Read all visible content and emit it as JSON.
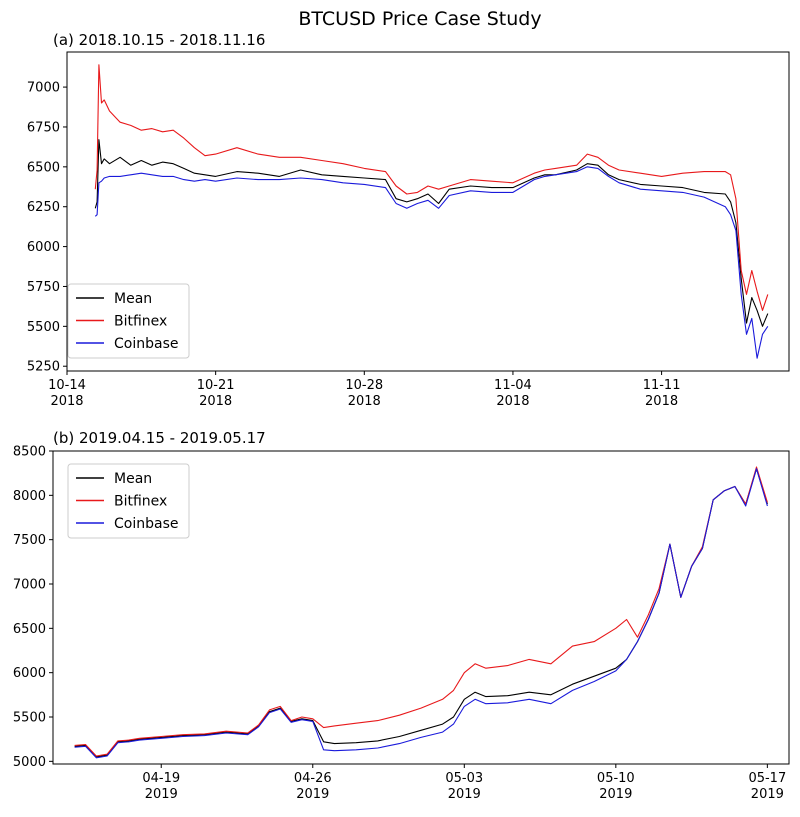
{
  "figure_title": "BTCUSD Price Case Study",
  "colors": {
    "mean": "#000000",
    "bitfinex": "#e8191b",
    "coinbase": "#1a1adb"
  },
  "chart_data": [
    {
      "type": "line",
      "title": "(a) 2018.10.15 - 2018.11.16",
      "xlabel": "",
      "ylabel": "",
      "x_range": [
        "2018-10-14",
        "2018-11-17"
      ],
      "ylim": [
        5220,
        7220
      ],
      "yticks": [
        5250,
        5500,
        5750,
        6000,
        6250,
        6500,
        6750,
        7000
      ],
      "xticks": [
        {
          "date": "2018-10-14",
          "label": "10-14",
          "year": "2018"
        },
        {
          "date": "2018-10-21",
          "label": "10-21",
          "year": "2018"
        },
        {
          "date": "2018-10-28",
          "label": "10-28",
          "year": "2018"
        },
        {
          "date": "2018-11-04",
          "label": "11-04",
          "year": "2018"
        },
        {
          "date": "2018-11-11",
          "label": "11-11",
          "year": "2018"
        }
      ],
      "legend": "bottom-left",
      "grid": false,
      "series": [
        {
          "name": "Mean",
          "color": "#000000",
          "x": [
            "2018-10-15T08:00",
            "2018-10-15T10:00",
            "2018-10-15T12:00",
            "2018-10-15T15:00",
            "2018-10-15T18:00",
            "2018-10-16T00:00",
            "2018-10-16T12:00",
            "2018-10-17T00:00",
            "2018-10-17T12:00",
            "2018-10-18T00:00",
            "2018-10-18T12:00",
            "2018-10-19T00:00",
            "2018-10-19T12:00",
            "2018-10-20T00:00",
            "2018-10-20T12:00",
            "2018-10-21T00:00",
            "2018-10-22T00:00",
            "2018-10-23T00:00",
            "2018-10-24T00:00",
            "2018-10-25T00:00",
            "2018-10-26T00:00",
            "2018-10-27T00:00",
            "2018-10-28T00:00",
            "2018-10-29T00:00",
            "2018-10-29T12:00",
            "2018-10-30T00:00",
            "2018-10-30T12:00",
            "2018-10-31T00:00",
            "2018-10-31T12:00",
            "2018-11-01T00:00",
            "2018-11-02T00:00",
            "2018-11-03T00:00",
            "2018-11-04T00:00",
            "2018-11-05T00:00",
            "2018-11-05T12:00",
            "2018-11-06T00:00",
            "2018-11-07T00:00",
            "2018-11-07T12:00",
            "2018-11-08T00:00",
            "2018-11-08T12:00",
            "2018-11-09T00:00",
            "2018-11-10T00:00",
            "2018-11-11T00:00",
            "2018-11-12T00:00",
            "2018-11-13T00:00",
            "2018-11-14T00:00",
            "2018-11-14T06:00",
            "2018-11-14T12:00",
            "2018-11-14T18:00",
            "2018-11-15T00:00",
            "2018-11-15T06:00",
            "2018-11-15T12:00",
            "2018-11-15T18:00",
            "2018-11-16T00:00"
          ],
          "y": [
            6240,
            6280,
            6670,
            6520,
            6550,
            6520,
            6560,
            6510,
            6540,
            6510,
            6530,
            6520,
            6490,
            6460,
            6450,
            6440,
            6470,
            6460,
            6440,
            6480,
            6450,
            6440,
            6430,
            6420,
            6300,
            6280,
            6300,
            6330,
            6270,
            6360,
            6380,
            6370,
            6370,
            6430,
            6450,
            6450,
            6480,
            6520,
            6510,
            6450,
            6420,
            6390,
            6380,
            6370,
            6340,
            6330,
            6280,
            6150,
            5800,
            5520,
            5680,
            5600,
            5500,
            5580
          ]
        },
        {
          "name": "Bitfinex",
          "color": "#e8191b",
          "x": [
            "2018-10-15T08:00",
            "2018-10-15T10:00",
            "2018-10-15T12:00",
            "2018-10-15T15:00",
            "2018-10-15T18:00",
            "2018-10-16T00:00",
            "2018-10-16T12:00",
            "2018-10-17T00:00",
            "2018-10-17T12:00",
            "2018-10-18T00:00",
            "2018-10-18T12:00",
            "2018-10-19T00:00",
            "2018-10-19T12:00",
            "2018-10-20T00:00",
            "2018-10-20T12:00",
            "2018-10-21T00:00",
            "2018-10-22T00:00",
            "2018-10-23T00:00",
            "2018-10-24T00:00",
            "2018-10-25T00:00",
            "2018-10-26T00:00",
            "2018-10-27T00:00",
            "2018-10-28T00:00",
            "2018-10-29T00:00",
            "2018-10-29T12:00",
            "2018-10-30T00:00",
            "2018-10-30T12:00",
            "2018-10-31T00:00",
            "2018-10-31T12:00",
            "2018-11-01T00:00",
            "2018-11-02T00:00",
            "2018-11-03T00:00",
            "2018-11-04T00:00",
            "2018-11-05T00:00",
            "2018-11-05T12:00",
            "2018-11-06T00:00",
            "2018-11-07T00:00",
            "2018-11-07T12:00",
            "2018-11-08T00:00",
            "2018-11-08T12:00",
            "2018-11-09T00:00",
            "2018-11-10T00:00",
            "2018-11-11T00:00",
            "2018-11-12T00:00",
            "2018-11-13T00:00",
            "2018-11-14T00:00",
            "2018-11-14T06:00",
            "2018-11-14T12:00",
            "2018-11-14T18:00",
            "2018-11-15T00:00",
            "2018-11-15T06:00",
            "2018-11-15T12:00",
            "2018-11-15T18:00",
            "2018-11-16T00:00"
          ],
          "y": [
            6360,
            6480,
            7140,
            6900,
            6920,
            6850,
            6780,
            6760,
            6730,
            6740,
            6720,
            6730,
            6680,
            6620,
            6570,
            6580,
            6620,
            6580,
            6560,
            6560,
            6540,
            6520,
            6490,
            6470,
            6380,
            6330,
            6340,
            6380,
            6360,
            6380,
            6420,
            6410,
            6400,
            6460,
            6480,
            6490,
            6510,
            6580,
            6560,
            6510,
            6480,
            6460,
            6440,
            6460,
            6470,
            6470,
            6450,
            6300,
            5850,
            5700,
            5850,
            5720,
            5600,
            5700
          ]
        },
        {
          "name": "Coinbase",
          "color": "#1a1adb",
          "x": [
            "2018-10-15T08:00",
            "2018-10-15T10:00",
            "2018-10-15T12:00",
            "2018-10-15T15:00",
            "2018-10-15T18:00",
            "2018-10-16T00:00",
            "2018-10-16T12:00",
            "2018-10-17T00:00",
            "2018-10-17T12:00",
            "2018-10-18T00:00",
            "2018-10-18T12:00",
            "2018-10-19T00:00",
            "2018-10-19T12:00",
            "2018-10-20T00:00",
            "2018-10-20T12:00",
            "2018-10-21T00:00",
            "2018-10-22T00:00",
            "2018-10-23T00:00",
            "2018-10-24T00:00",
            "2018-10-25T00:00",
            "2018-10-26T00:00",
            "2018-10-27T00:00",
            "2018-10-28T00:00",
            "2018-10-29T00:00",
            "2018-10-29T12:00",
            "2018-10-30T00:00",
            "2018-10-30T12:00",
            "2018-10-31T00:00",
            "2018-10-31T12:00",
            "2018-11-01T00:00",
            "2018-11-02T00:00",
            "2018-11-03T00:00",
            "2018-11-04T00:00",
            "2018-11-05T00:00",
            "2018-11-05T12:00",
            "2018-11-06T00:00",
            "2018-11-07T00:00",
            "2018-11-07T12:00",
            "2018-11-08T00:00",
            "2018-11-08T12:00",
            "2018-11-09T00:00",
            "2018-11-10T00:00",
            "2018-11-11T00:00",
            "2018-11-12T00:00",
            "2018-11-13T00:00",
            "2018-11-14T00:00",
            "2018-11-14T06:00",
            "2018-11-14T12:00",
            "2018-11-14T18:00",
            "2018-11-15T00:00",
            "2018-11-15T06:00",
            "2018-11-15T12:00",
            "2018-11-15T18:00",
            "2018-11-16T00:00"
          ],
          "y": [
            6190,
            6200,
            6400,
            6410,
            6430,
            6440,
            6440,
            6450,
            6460,
            6450,
            6440,
            6440,
            6420,
            6410,
            6420,
            6410,
            6430,
            6420,
            6420,
            6430,
            6420,
            6400,
            6390,
            6370,
            6270,
            6240,
            6270,
            6290,
            6240,
            6320,
            6350,
            6340,
            6340,
            6420,
            6440,
            6450,
            6470,
            6500,
            6490,
            6440,
            6400,
            6360,
            6350,
            6340,
            6310,
            6250,
            6200,
            6100,
            5700,
            5450,
            5550,
            5300,
            5450,
            5500
          ]
        }
      ]
    },
    {
      "type": "line",
      "title": "(b) 2019.04.15 - 2019.05.17",
      "xlabel": "",
      "ylabel": "",
      "x_range": [
        "2019-04-14",
        "2019-05-18"
      ],
      "ylim": [
        4970,
        8500
      ],
      "yticks": [
        5000,
        5500,
        6000,
        6500,
        7000,
        7500,
        8000,
        8500
      ],
      "xticks": [
        {
          "date": "2019-04-19",
          "label": "04-19",
          "year": "2019"
        },
        {
          "date": "2019-04-26",
          "label": "04-26",
          "year": "2019"
        },
        {
          "date": "2019-05-03",
          "label": "05-03",
          "year": "2019"
        },
        {
          "date": "2019-05-10",
          "label": "05-10",
          "year": "2019"
        },
        {
          "date": "2019-05-17",
          "label": "05-17",
          "year": "2019"
        }
      ],
      "legend": "top-left",
      "grid": false,
      "series": [
        {
          "name": "Mean",
          "color": "#000000",
          "x": [
            "2019-04-15T00:00",
            "2019-04-15T12:00",
            "2019-04-16T00:00",
            "2019-04-16T12:00",
            "2019-04-17T00:00",
            "2019-04-17T12:00",
            "2019-04-18T00:00",
            "2019-04-19T00:00",
            "2019-04-20T00:00",
            "2019-04-21T00:00",
            "2019-04-22T00:00",
            "2019-04-23T00:00",
            "2019-04-23T12:00",
            "2019-04-24T00:00",
            "2019-04-24T12:00",
            "2019-04-25T00:00",
            "2019-04-25T12:00",
            "2019-04-26T00:00",
            "2019-04-26T12:00",
            "2019-04-27T00:00",
            "2019-04-28T00:00",
            "2019-04-29T00:00",
            "2019-04-30T00:00",
            "2019-05-01T00:00",
            "2019-05-02T00:00",
            "2019-05-02T12:00",
            "2019-05-03T00:00",
            "2019-05-03T12:00",
            "2019-05-04T00:00",
            "2019-05-05T00:00",
            "2019-05-06T00:00",
            "2019-05-07T00:00",
            "2019-05-08T00:00",
            "2019-05-09T00:00",
            "2019-05-10T00:00",
            "2019-05-10T12:00",
            "2019-05-11T00:00",
            "2019-05-11T12:00",
            "2019-05-12T00:00",
            "2019-05-12T12:00",
            "2019-05-13T00:00",
            "2019-05-13T12:00",
            "2019-05-14T00:00",
            "2019-05-14T12:00",
            "2019-05-15T00:00",
            "2019-05-15T12:00",
            "2019-05-16T00:00",
            "2019-05-16T12:00",
            "2019-05-17T00:00"
          ],
          "y": [
            5170,
            5180,
            5050,
            5070,
            5220,
            5230,
            5250,
            5270,
            5290,
            5300,
            5330,
            5310,
            5400,
            5560,
            5600,
            5450,
            5480,
            5460,
            5220,
            5200,
            5210,
            5230,
            5280,
            5350,
            5420,
            5500,
            5700,
            5780,
            5730,
            5740,
            5780,
            5750,
            5870,
            5960,
            6050,
            6150,
            6350,
            6600,
            6900,
            7450,
            6850,
            7200,
            7400,
            7950,
            8050,
            8100,
            7900,
            8300,
            7900
          ]
        },
        {
          "name": "Bitfinex",
          "color": "#e8191b",
          "x": [
            "2019-04-15T00:00",
            "2019-04-15T12:00",
            "2019-04-16T00:00",
            "2019-04-16T12:00",
            "2019-04-17T00:00",
            "2019-04-17T12:00",
            "2019-04-18T00:00",
            "2019-04-19T00:00",
            "2019-04-20T00:00",
            "2019-04-21T00:00",
            "2019-04-22T00:00",
            "2019-04-23T00:00",
            "2019-04-23T12:00",
            "2019-04-24T00:00",
            "2019-04-24T12:00",
            "2019-04-25T00:00",
            "2019-04-25T12:00",
            "2019-04-26T00:00",
            "2019-04-26T12:00",
            "2019-04-27T00:00",
            "2019-04-28T00:00",
            "2019-04-29T00:00",
            "2019-04-30T00:00",
            "2019-05-01T00:00",
            "2019-05-02T00:00",
            "2019-05-02T12:00",
            "2019-05-03T00:00",
            "2019-05-03T12:00",
            "2019-05-04T00:00",
            "2019-05-05T00:00",
            "2019-05-06T00:00",
            "2019-05-07T00:00",
            "2019-05-08T00:00",
            "2019-05-09T00:00",
            "2019-05-10T00:00",
            "2019-05-10T12:00",
            "2019-05-11T00:00",
            "2019-05-11T12:00",
            "2019-05-12T00:00",
            "2019-05-12T12:00",
            "2019-05-13T00:00",
            "2019-05-13T12:00",
            "2019-05-14T00:00",
            "2019-05-14T12:00",
            "2019-05-15T00:00",
            "2019-05-15T12:00",
            "2019-05-16T00:00",
            "2019-05-16T12:00",
            "2019-05-17T00:00"
          ],
          "y": [
            5180,
            5190,
            5060,
            5080,
            5230,
            5240,
            5260,
            5280,
            5300,
            5310,
            5340,
            5320,
            5410,
            5580,
            5620,
            5460,
            5500,
            5480,
            5380,
            5400,
            5430,
            5460,
            5520,
            5600,
            5700,
            5800,
            6000,
            6100,
            6050,
            6080,
            6150,
            6100,
            6300,
            6350,
            6500,
            6600,
            6400,
            6650,
            6950,
            7450,
            6850,
            7200,
            7420,
            7950,
            8050,
            8100,
            7900,
            8320,
            7920
          ]
        },
        {
          "name": "Coinbase",
          "color": "#1a1adb",
          "x": [
            "2019-04-15T00:00",
            "2019-04-15T12:00",
            "2019-04-16T00:00",
            "2019-04-16T12:00",
            "2019-04-17T00:00",
            "2019-04-17T12:00",
            "2019-04-18T00:00",
            "2019-04-19T00:00",
            "2019-04-20T00:00",
            "2019-04-21T00:00",
            "2019-04-22T00:00",
            "2019-04-23T00:00",
            "2019-04-23T12:00",
            "2019-04-24T00:00",
            "2019-04-24T12:00",
            "2019-04-25T00:00",
            "2019-04-25T12:00",
            "2019-04-26T00:00",
            "2019-04-26T12:00",
            "2019-04-27T00:00",
            "2019-04-28T00:00",
            "2019-04-29T00:00",
            "2019-04-30T00:00",
            "2019-05-01T00:00",
            "2019-05-02T00:00",
            "2019-05-02T12:00",
            "2019-05-03T00:00",
            "2019-05-03T12:00",
            "2019-05-04T00:00",
            "2019-05-05T00:00",
            "2019-05-06T00:00",
            "2019-05-07T00:00",
            "2019-05-08T00:00",
            "2019-05-09T00:00",
            "2019-05-10T00:00",
            "2019-05-10T12:00",
            "2019-05-11T00:00",
            "2019-05-11T12:00",
            "2019-05-12T00:00",
            "2019-05-12T12:00",
            "2019-05-13T00:00",
            "2019-05-13T12:00",
            "2019-05-14T00:00",
            "2019-05-14T12:00",
            "2019-05-15T00:00",
            "2019-05-15T12:00",
            "2019-05-16T00:00",
            "2019-05-16T12:00",
            "2019-05-17T00:00"
          ],
          "y": [
            5160,
            5170,
            5040,
            5060,
            5210,
            5220,
            5240,
            5260,
            5280,
            5290,
            5320,
            5300,
            5390,
            5550,
            5590,
            5440,
            5470,
            5450,
            5130,
            5120,
            5130,
            5150,
            5200,
            5270,
            5330,
            5420,
            5620,
            5700,
            5650,
            5660,
            5700,
            5650,
            5800,
            5900,
            6020,
            6150,
            6350,
            6600,
            6900,
            7450,
            6850,
            7200,
            7400,
            7950,
            8050,
            8100,
            7880,
            8300,
            7880
          ]
        }
      ]
    }
  ]
}
